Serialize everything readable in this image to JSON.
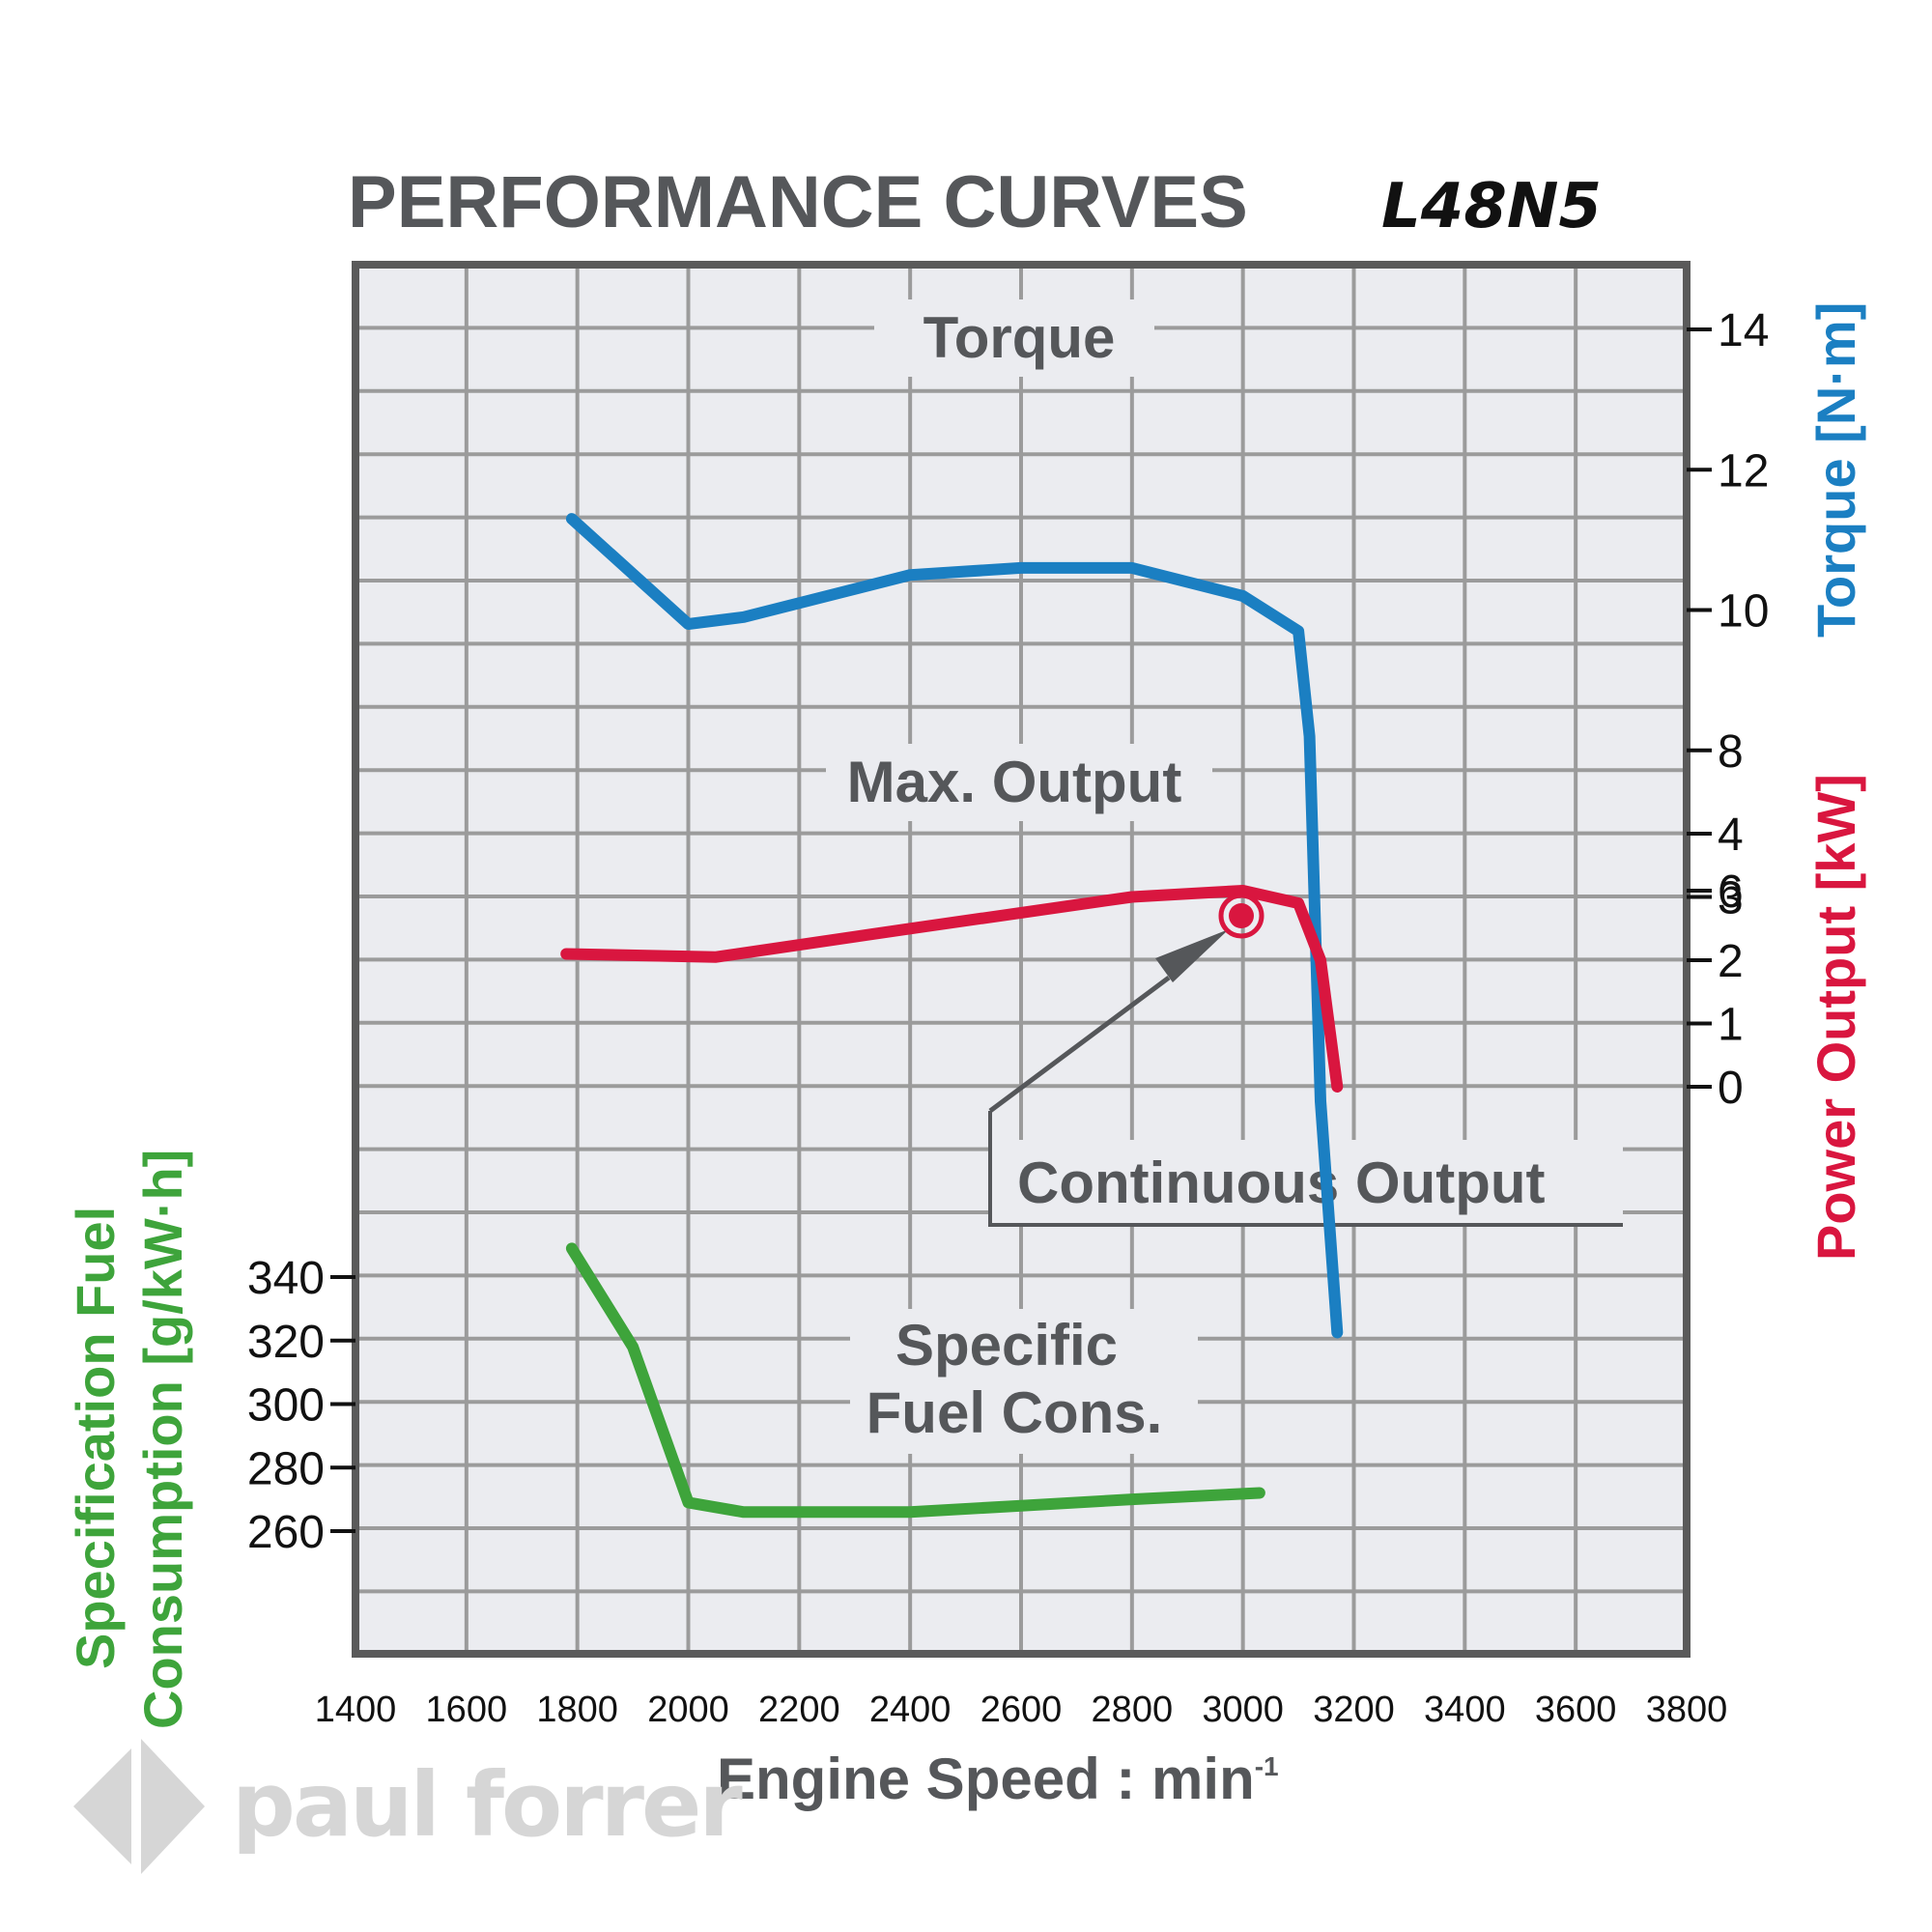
{
  "title": "PERFORMANCE CURVES",
  "model": "L48N5",
  "watermark": "paul forrer",
  "colors": {
    "torque": "#1b7fc2",
    "power": "#d9163f",
    "fuel": "#3ea43b",
    "grid": "#9b9b9b",
    "frame": "#5a5a5a",
    "plot_bg": "#ebecf0"
  },
  "chart_data": {
    "type": "line",
    "title": "PERFORMANCE CURVES L48N5",
    "xlabel": "Engine Speed : min",
    "xlabel_sup": "-1",
    "xlim": [
      1400,
      3800
    ],
    "x_ticks": [
      "1400",
      "1600",
      "1800",
      "2000",
      "2200",
      "2400",
      "2600",
      "2800",
      "3000",
      "3200",
      "3400",
      "3600",
      "3800"
    ],
    "grid": true,
    "series": [
      {
        "name": "Torque",
        "axis": "Torque [N·m]",
        "ylim": [
          6,
          14
        ],
        "ticks": [
          "14",
          "12",
          "10",
          "8",
          "6"
        ],
        "points": [
          [
            1790,
            11.3
          ],
          [
            2000,
            9.8
          ],
          [
            2100,
            9.9
          ],
          [
            2400,
            10.5
          ],
          [
            2600,
            10.6
          ],
          [
            2800,
            10.6
          ],
          [
            3000,
            10.2
          ],
          [
            3100,
            9.7
          ],
          [
            3120,
            8.2
          ],
          [
            3140,
            3.0
          ],
          [
            3170,
            -0.3
          ]
        ]
      },
      {
        "name": "Max. Output",
        "axis": "Power Output [kW]",
        "ylim": [
          0,
          4
        ],
        "ticks": [
          "4",
          "3",
          "2",
          "1",
          "0"
        ],
        "points": [
          [
            1780,
            2.1
          ],
          [
            2050,
            2.05
          ],
          [
            2400,
            2.5
          ],
          [
            2800,
            3.0
          ],
          [
            3000,
            3.1
          ],
          [
            3100,
            2.9
          ],
          [
            3140,
            2.0
          ],
          [
            3170,
            0.0
          ]
        ]
      },
      {
        "name": "Specific Fuel Cons.",
        "axis": "Specification Fuel Consumption [g/kW·h]",
        "ylim": [
          260,
          340
        ],
        "ticks": [
          "340",
          "320",
          "300",
          "280",
          "260"
        ],
        "points": [
          [
            1790,
            349
          ],
          [
            1900,
            318
          ],
          [
            2000,
            269
          ],
          [
            2100,
            266
          ],
          [
            2400,
            266
          ],
          [
            2600,
            268
          ],
          [
            2800,
            270
          ],
          [
            3030,
            272
          ]
        ]
      }
    ],
    "annotations": [
      {
        "label": "Continuous Output",
        "x": 3000,
        "y_kW": 2.6,
        "marker": "circle-dot"
      }
    ],
    "labels": {
      "torque_axis": "Torque [N·m]",
      "power_axis": "Power Output [kW]",
      "fuel_axis_line1": "Specification Fuel",
      "fuel_axis_line2": "Consumption [g/kW·h]",
      "torque_curve": "Torque",
      "power_curve": "Max. Output",
      "continuous": "Continuous Output",
      "fuel_curve_line1": "Specific",
      "fuel_curve_line2": "Fuel Cons."
    }
  }
}
